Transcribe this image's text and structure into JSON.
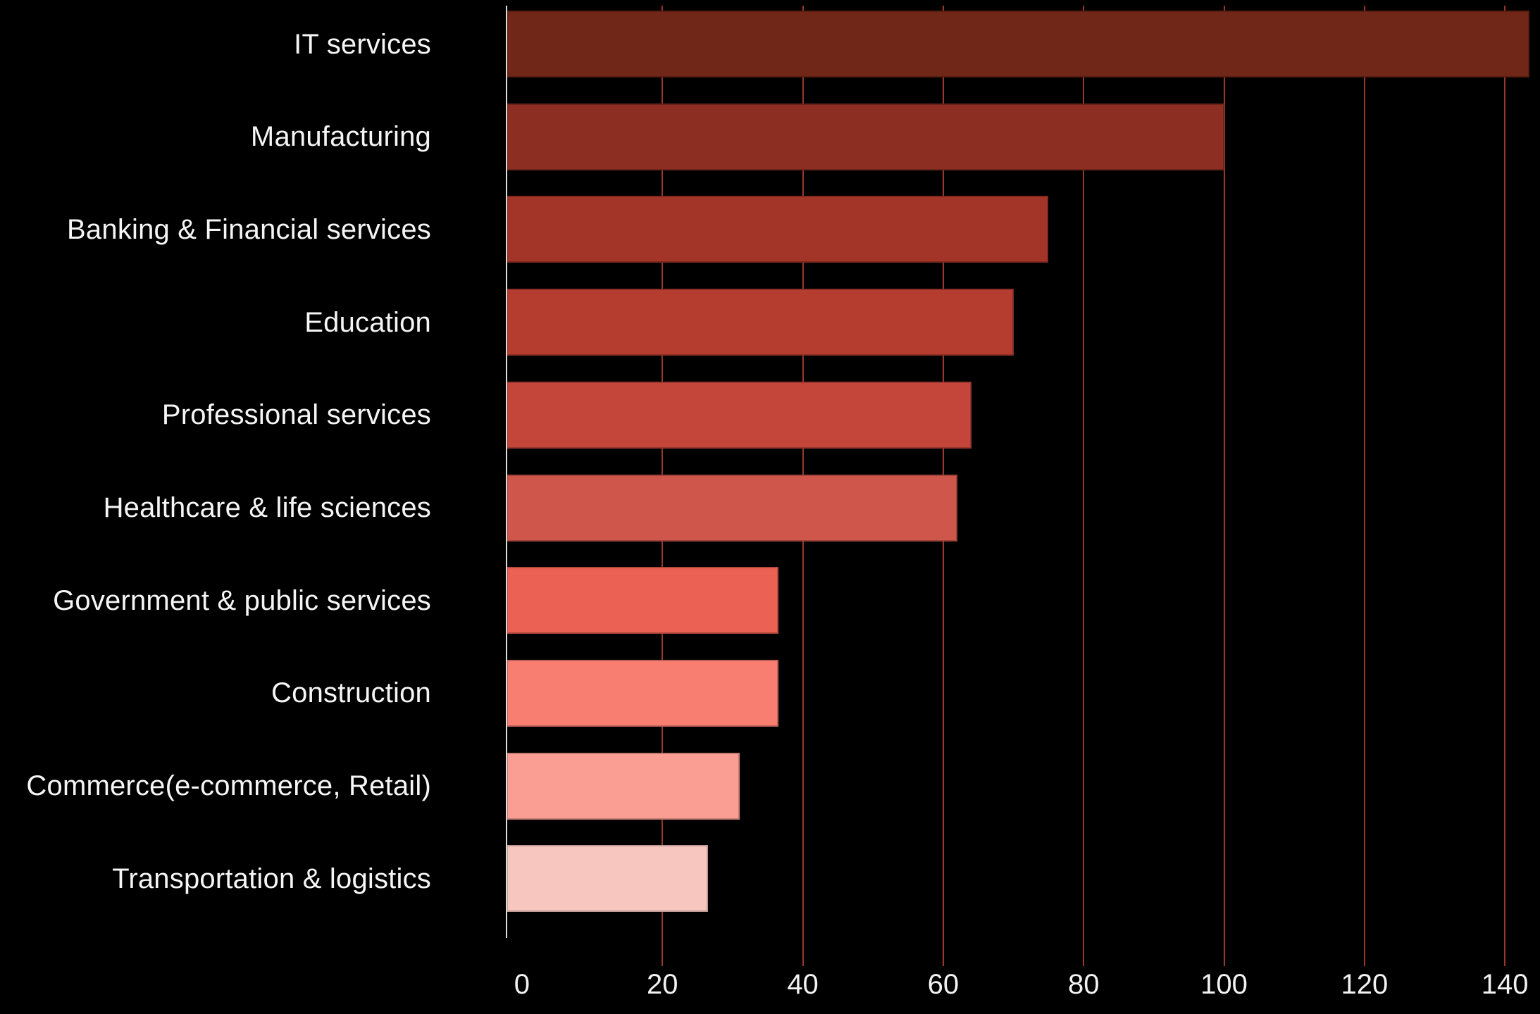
{
  "chart_data": {
    "type": "bar",
    "orientation": "horizontal",
    "title": "",
    "categories": [
      "IT services",
      "Manufacturing",
      "Banking & Financial services",
      "Education",
      "Professional services",
      "Healthcare & life sciences",
      "Government & public services",
      "Construction",
      "Commerce(e-commerce, Retail)",
      "Transportation & logistics"
    ],
    "values": [
      143.5,
      100,
      75,
      70,
      64,
      62,
      36.5,
      36.5,
      31,
      26.5
    ],
    "x_ticks": [
      "0",
      "20",
      "40",
      "60",
      "80",
      "100",
      "120",
      "140"
    ],
    "x_tick_values": [
      0,
      20,
      40,
      60,
      80,
      100,
      120,
      140
    ],
    "xlim": [
      -2.2,
      145
    ],
    "xlabel": "",
    "ylabel": "",
    "grid": "vertical-gridlines-on",
    "legend": "none",
    "bar_colors": [
      "#712718",
      "#8D2E22",
      "#A33528",
      "#B53D30",
      "#C4463B",
      "#CE564B",
      "#EB6153",
      "#F87E72",
      "#FA9E94",
      "#F7C6BF"
    ]
  },
  "colors": {
    "background": "#000000",
    "gridline": "#98382A",
    "axis_line": "#DCDCDC",
    "category_text": "#F5F5F5",
    "tick_text": "#F2F2F2"
  }
}
